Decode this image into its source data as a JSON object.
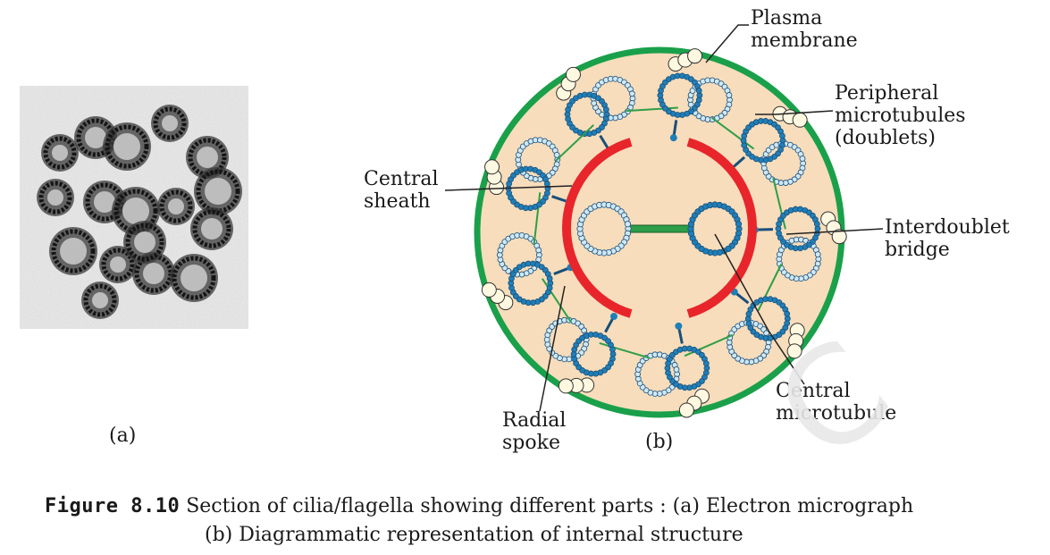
{
  "panel_a_label": "(a)",
  "panel_b_label": "(b)",
  "labels": {
    "plasma_membrane": [
      "Plasma",
      "membrane"
    ],
    "peripheral_microtubules": [
      "Peripheral",
      "microtubules",
      "(doublets)"
    ],
    "interdoublet_bridge": [
      "Interdoublet",
      "bridge"
    ],
    "central_microtubule": [
      "Central",
      "microtubule"
    ],
    "radial_spoke": [
      "Radial",
      "spoke"
    ],
    "central_sheath": [
      "Central",
      "sheath"
    ]
  },
  "caption": {
    "number": "Figure 8.10",
    "line1": "Section of cilia/flagella showing different parts : (a) Electron micrograph",
    "line2": "(b) Diagrammatic representation of internal structure"
  },
  "colors": {
    "membrane": "#1aa04a",
    "cytoplasm": "#f7ddbb",
    "sheath": "#e8252b",
    "tubule_dark": "#1f7fb8",
    "tubule_light": "#cfe8f5",
    "bridge": "#2e9e48"
  }
}
